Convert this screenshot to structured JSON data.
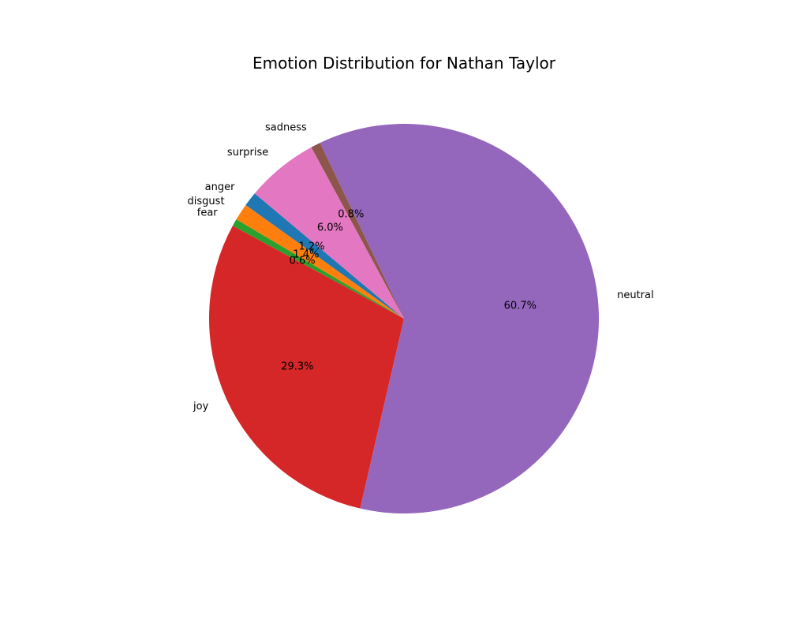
{
  "chart_data": {
    "type": "pie",
    "title": "Emotion Distribution for Nathan Taylor",
    "slices": [
      {
        "label": "anger",
        "value": 1.2,
        "pct_label": "1.2%",
        "color": "#1f77b4"
      },
      {
        "label": "disgust",
        "value": 1.4,
        "pct_label": "1.4%",
        "color": "#ff7f0e"
      },
      {
        "label": "fear",
        "value": 0.6,
        "pct_label": "0.6%",
        "color": "#2ca02c"
      },
      {
        "label": "joy",
        "value": 29.3,
        "pct_label": "29.3%",
        "color": "#d62728"
      },
      {
        "label": "neutral",
        "value": 60.7,
        "pct_label": "60.7%",
        "color": "#9467bd"
      },
      {
        "label": "sadness",
        "value": 0.8,
        "pct_label": "0.8%",
        "color": "#8c564b"
      },
      {
        "label": "surprise",
        "value": 6.0,
        "pct_label": "6.0%",
        "color": "#e377c2"
      }
    ],
    "start_angle_deg": 140,
    "direction": "counterclockwise",
    "legend": "none"
  }
}
